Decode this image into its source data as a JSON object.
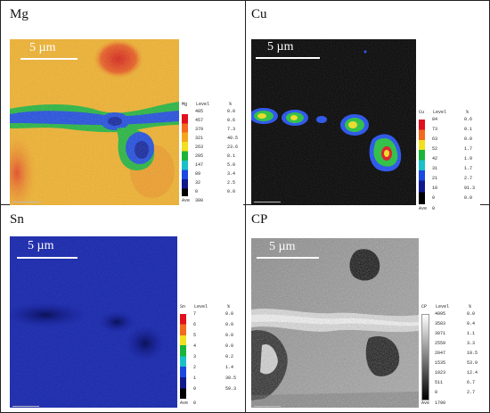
{
  "panels": [
    {
      "id": "mg",
      "label": "Mg",
      "scale": "5 µm",
      "legend": {
        "element": "Mg",
        "levels": [
          "485",
          "457",
          "379",
          "321",
          "263",
          "205",
          "147",
          "89",
          "32",
          "0"
        ],
        "pcts": [
          "0.0",
          "0.6",
          "7.3",
          "40.5",
          "23.6",
          "8.1",
          "5.0",
          "3.4",
          "2.5",
          "0.0"
        ],
        "ave": "Ave",
        "ave_value": "300",
        "col_level": "Level",
        "col_pct": "%"
      }
    },
    {
      "id": "cu",
      "label": "Cu",
      "scale": "5 µm",
      "legend": {
        "element": "Cu",
        "levels": [
          "84",
          "73",
          "63",
          "52",
          "42",
          "31",
          "21",
          "10",
          "0"
        ],
        "pcts": [
          "0.6",
          "0.1",
          "0.0",
          "1.7",
          "1.9",
          "1.7",
          "2.7",
          "91.3",
          "0.0"
        ],
        "ave": "Ave",
        "ave_value": "0",
        "col_level": "Level",
        "col_pct": "%"
      }
    },
    {
      "id": "sn",
      "label": "Sn",
      "scale": "5 µm",
      "legend": {
        "element": "Sn",
        "levels": [
          "7",
          "6",
          "5",
          "4",
          "3",
          "2",
          "1",
          "0"
        ],
        "pcts": [
          "0.0",
          "0.0",
          "0.0",
          "0.0",
          "0.2",
          "1.4",
          "30.5",
          "59.3"
        ],
        "ave": "Ave",
        "ave_value": "0",
        "col_level": "Level",
        "col_pct": "%"
      }
    },
    {
      "id": "cp",
      "label": "CP",
      "scale": "5 µm",
      "legend": {
        "element": "CP",
        "levels": [
          "4095",
          "3583",
          "3071",
          "2559",
          "2047",
          "1535",
          "1023",
          "511",
          "0"
        ],
        "pcts": [
          "0.0",
          "0.4",
          "1.1",
          "3.3",
          "19.5",
          "53.9",
          "12.4",
          "6.7",
          "2.7"
        ],
        "ave": "Ave",
        "ave_value": "1790",
        "col_level": "Level",
        "col_pct": "%"
      }
    }
  ]
}
